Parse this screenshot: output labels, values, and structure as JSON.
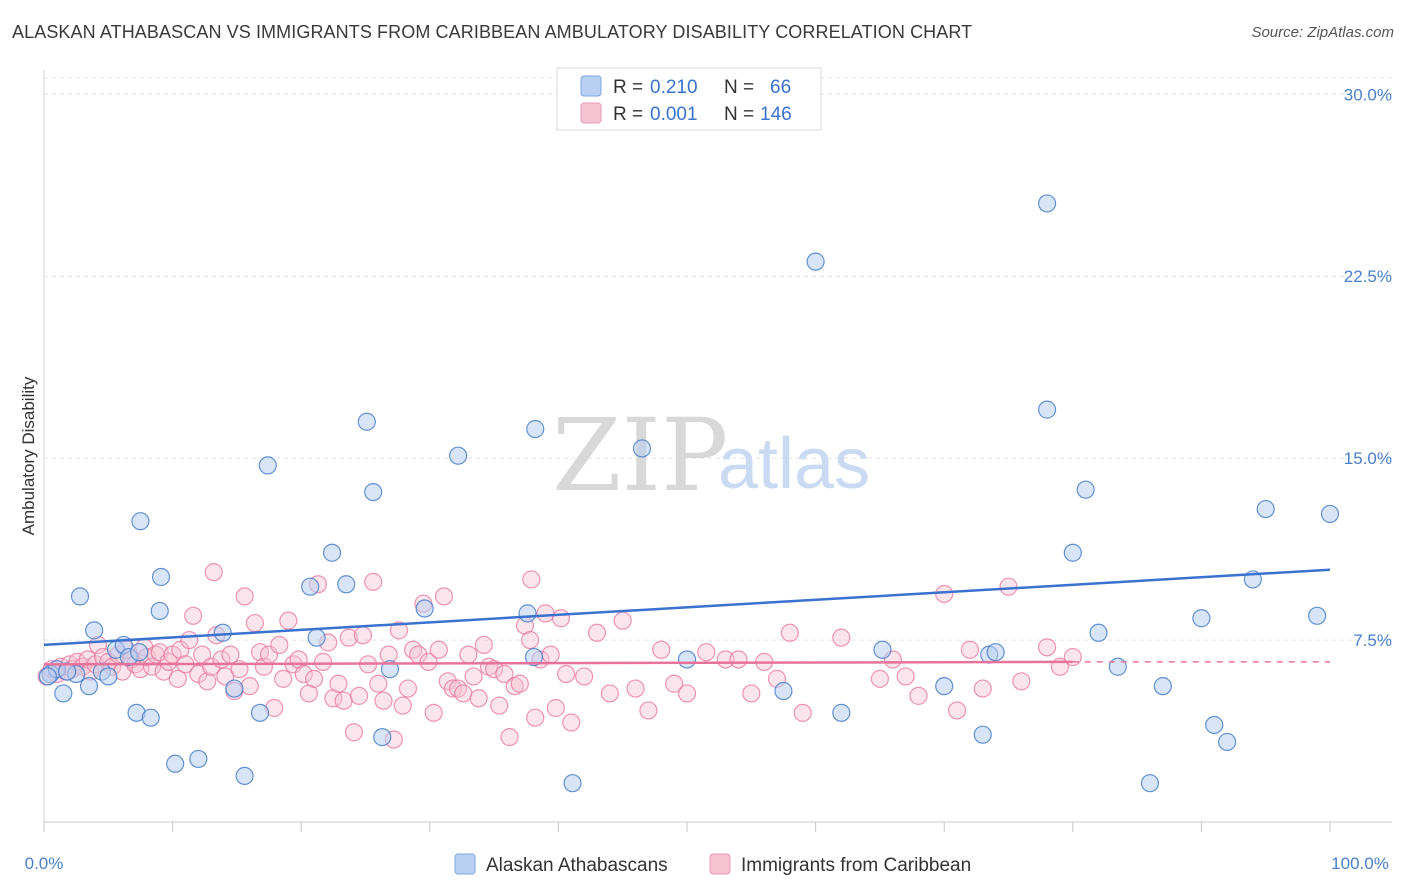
{
  "header": {
    "title": "ALASKAN ATHABASCAN VS IMMIGRANTS FROM CARIBBEAN AMBULATORY DISABILITY CORRELATION CHART",
    "source": "Source: ZipAtlas.com"
  },
  "watermark": {
    "zip": "ZIP",
    "atlas": "atlas"
  },
  "legend": {
    "rows": [
      {
        "r_label": "R =",
        "r_value": "0.210",
        "n_label": "N =",
        "n_value": "66"
      },
      {
        "r_label": "R =",
        "r_value": "0.001",
        "n_label": "N =",
        "n_value": "146"
      }
    ]
  },
  "bottom_legend": [
    "Alaskan Athabascans",
    "Immigrants from Caribbean"
  ],
  "chart_data": {
    "type": "scatter",
    "title": "ALASKAN ATHABASCAN VS IMMIGRANTS FROM CARIBBEAN AMBULATORY DISABILITY CORRELATION CHART",
    "xlabel": "",
    "ylabel": "Ambulatory Disability",
    "xlim": [
      0,
      100
    ],
    "ylim": [
      0,
      31
    ],
    "x_tick_labels": [
      "0.0%",
      "100.0%"
    ],
    "y_ticks": [
      7.5,
      15.0,
      22.5,
      30.0
    ],
    "y_tick_labels": [
      "7.5%",
      "15.0%",
      "22.5%",
      "30.0%"
    ],
    "grid": "horizontal dashed",
    "legend_position": "top-center",
    "colors": {
      "blue": "#4a7fcb",
      "blue_fill": "#b8d0f2",
      "pink": "#e8739a",
      "pink_fill": "#f6c3d3"
    },
    "series": [
      {
        "name": "Alaskan Athabascans",
        "color": "#4a7fcb",
        "trend": {
          "x": [
            0,
            100
          ],
          "y": [
            7.3,
            10.4
          ]
        },
        "points": [
          [
            0.5,
            6.1
          ],
          [
            1.0,
            6.3
          ],
          [
            1.5,
            5.3
          ],
          [
            2.5,
            6.1
          ],
          [
            2.8,
            9.3
          ],
          [
            3.5,
            5.6
          ],
          [
            3.9,
            7.9
          ],
          [
            4.5,
            6.2
          ],
          [
            5.0,
            6.0
          ],
          [
            5.6,
            7.1
          ],
          [
            6.2,
            7.3
          ],
          [
            6.6,
            6.8
          ],
          [
            7.2,
            4.5
          ],
          [
            7.4,
            7.0
          ],
          [
            7.5,
            12.4
          ],
          [
            8.3,
            4.3
          ],
          [
            9.0,
            8.7
          ],
          [
            9.1,
            10.1
          ],
          [
            10.2,
            2.4
          ],
          [
            12.0,
            2.6
          ],
          [
            13.9,
            7.8
          ],
          [
            14.8,
            5.5
          ],
          [
            15.6,
            1.9
          ],
          [
            16.8,
            4.5
          ],
          [
            17.4,
            14.7
          ],
          [
            20.7,
            9.7
          ],
          [
            21.2,
            7.6
          ],
          [
            22.4,
            11.1
          ],
          [
            23.5,
            9.8
          ],
          [
            25.1,
            16.5
          ],
          [
            25.6,
            13.6
          ],
          [
            26.3,
            3.5
          ],
          [
            26.9,
            6.3
          ],
          [
            29.6,
            8.8
          ],
          [
            32.2,
            15.1
          ],
          [
            37.6,
            8.6
          ],
          [
            38.1,
            6.8
          ],
          [
            38.2,
            16.2
          ],
          [
            41.1,
            1.6
          ],
          [
            46.5,
            15.4
          ],
          [
            50.0,
            6.7
          ],
          [
            57.5,
            5.4
          ],
          [
            60.0,
            23.1
          ],
          [
            62.0,
            4.5
          ],
          [
            65.2,
            7.1
          ],
          [
            70.0,
            5.6
          ],
          [
            73.0,
            3.6
          ],
          [
            73.5,
            6.9
          ],
          [
            74.0,
            7.0
          ],
          [
            78.0,
            25.5
          ],
          [
            78.0,
            17.0
          ],
          [
            80.0,
            11.1
          ],
          [
            81.0,
            13.7
          ],
          [
            82.0,
            7.8
          ],
          [
            83.5,
            6.4
          ],
          [
            86.0,
            1.6
          ],
          [
            87.0,
            5.6
          ],
          [
            90.0,
            8.4
          ],
          [
            91.0,
            4.0
          ],
          [
            92.0,
            3.3
          ],
          [
            94.0,
            10.0
          ],
          [
            95.0,
            12.9
          ],
          [
            99.0,
            8.5
          ],
          [
            100.0,
            12.7
          ],
          [
            0.3,
            6.0
          ],
          [
            1.8,
            6.2
          ]
        ]
      },
      {
        "name": "Immigrants from Caribbean",
        "color": "#e8739a",
        "trend": {
          "x": [
            0,
            80
          ],
          "y": [
            6.5,
            6.6
          ]
        },
        "trend_dashed": {
          "x": [
            80,
            100
          ],
          "y": [
            6.6,
            6.6
          ]
        },
        "points": [
          [
            0.2,
            6.0
          ],
          [
            0.6,
            6.3
          ],
          [
            1.0,
            6.1
          ],
          [
            1.3,
            6.4
          ],
          [
            1.7,
            6.2
          ],
          [
            2.0,
            6.5
          ],
          [
            2.2,
            6.3
          ],
          [
            2.6,
            6.6
          ],
          [
            3.0,
            6.4
          ],
          [
            3.4,
            6.7
          ],
          [
            3.6,
            6.2
          ],
          [
            4.0,
            6.5
          ],
          [
            4.2,
            7.3
          ],
          [
            4.6,
            6.8
          ],
          [
            5.0,
            6.6
          ],
          [
            5.3,
            6.4
          ],
          [
            5.8,
            6.9
          ],
          [
            6.1,
            6.2
          ],
          [
            6.4,
            7.1
          ],
          [
            6.8,
            6.7
          ],
          [
            7.1,
            6.5
          ],
          [
            7.5,
            6.3
          ],
          [
            7.8,
            7.2
          ],
          [
            8.0,
            6.8
          ],
          [
            8.4,
            6.4
          ],
          [
            8.7,
            6.9
          ],
          [
            9.0,
            7.0
          ],
          [
            9.3,
            6.2
          ],
          [
            9.7,
            6.6
          ],
          [
            10.0,
            6.9
          ],
          [
            10.4,
            5.9
          ],
          [
            10.6,
            7.1
          ],
          [
            11.0,
            6.5
          ],
          [
            11.3,
            7.5
          ],
          [
            11.6,
            8.5
          ],
          [
            12.0,
            6.1
          ],
          [
            12.3,
            6.9
          ],
          [
            12.7,
            5.8
          ],
          [
            13.0,
            6.4
          ],
          [
            13.4,
            7.7
          ],
          [
            13.8,
            6.7
          ],
          [
            14.1,
            6.0
          ],
          [
            14.5,
            6.9
          ],
          [
            14.8,
            5.4
          ],
          [
            15.2,
            6.3
          ],
          [
            15.6,
            9.3
          ],
          [
            16.0,
            5.6
          ],
          [
            16.4,
            8.2
          ],
          [
            16.8,
            7.0
          ],
          [
            17.1,
            6.4
          ],
          [
            17.5,
            6.9
          ],
          [
            17.9,
            4.7
          ],
          [
            18.3,
            7.3
          ],
          [
            18.6,
            5.9
          ],
          [
            19.0,
            8.3
          ],
          [
            19.4,
            6.5
          ],
          [
            19.8,
            6.7
          ],
          [
            20.2,
            6.1
          ],
          [
            20.6,
            5.3
          ],
          [
            21.0,
            5.9
          ],
          [
            21.3,
            9.8
          ],
          [
            21.7,
            6.6
          ],
          [
            22.1,
            7.4
          ],
          [
            22.5,
            5.1
          ],
          [
            22.9,
            5.7
          ],
          [
            23.3,
            5.0
          ],
          [
            23.7,
            7.6
          ],
          [
            24.1,
            3.7
          ],
          [
            24.5,
            5.2
          ],
          [
            24.8,
            7.7
          ],
          [
            25.2,
            6.5
          ],
          [
            25.6,
            9.9
          ],
          [
            26.0,
            5.7
          ],
          [
            26.4,
            5.0
          ],
          [
            26.8,
            6.9
          ],
          [
            27.2,
            3.4
          ],
          [
            27.6,
            7.9
          ],
          [
            27.9,
            4.8
          ],
          [
            28.3,
            5.5
          ],
          [
            28.7,
            7.1
          ],
          [
            29.1,
            6.9
          ],
          [
            29.5,
            9.0
          ],
          [
            29.9,
            6.6
          ],
          [
            30.3,
            4.5
          ],
          [
            30.7,
            7.1
          ],
          [
            31.1,
            9.3
          ],
          [
            31.4,
            5.8
          ],
          [
            31.8,
            5.5
          ],
          [
            32.2,
            5.5
          ],
          [
            32.6,
            5.3
          ],
          [
            33.0,
            6.9
          ],
          [
            33.4,
            6.0
          ],
          [
            33.8,
            5.1
          ],
          [
            34.2,
            7.3
          ],
          [
            34.6,
            6.4
          ],
          [
            35.0,
            6.3
          ],
          [
            35.4,
            4.8
          ],
          [
            35.8,
            6.1
          ],
          [
            36.2,
            3.5
          ],
          [
            36.6,
            5.6
          ],
          [
            37.0,
            5.7
          ],
          [
            37.4,
            8.1
          ],
          [
            37.8,
            7.5
          ],
          [
            38.2,
            4.3
          ],
          [
            38.6,
            6.7
          ],
          [
            39.0,
            8.6
          ],
          [
            39.4,
            6.9
          ],
          [
            39.8,
            4.7
          ],
          [
            40.2,
            8.4
          ],
          [
            40.6,
            6.1
          ],
          [
            41.0,
            4.1
          ],
          [
            42.0,
            6.0
          ],
          [
            43.0,
            7.8
          ],
          [
            44.0,
            5.3
          ],
          [
            45.0,
            8.3
          ],
          [
            46.0,
            5.5
          ],
          [
            47.0,
            4.6
          ],
          [
            48.0,
            7.1
          ],
          [
            49.0,
            5.7
          ],
          [
            50.0,
            5.3
          ],
          [
            51.5,
            7.0
          ],
          [
            53.0,
            6.7
          ],
          [
            54.0,
            6.7
          ],
          [
            55.0,
            5.3
          ],
          [
            56.0,
            6.6
          ],
          [
            57.0,
            5.9
          ],
          [
            58.0,
            7.8
          ],
          [
            59.0,
            4.5
          ],
          [
            62.0,
            7.6
          ],
          [
            65.0,
            5.9
          ],
          [
            66.0,
            6.7
          ],
          [
            67.0,
            6.0
          ],
          [
            68.0,
            5.2
          ],
          [
            70.0,
            9.4
          ],
          [
            71.0,
            4.6
          ],
          [
            72.0,
            7.1
          ],
          [
            73.0,
            5.5
          ],
          [
            75.0,
            9.7
          ],
          [
            76.0,
            5.8
          ],
          [
            78.0,
            7.2
          ],
          [
            79.0,
            6.4
          ],
          [
            80.0,
            6.8
          ],
          [
            13.2,
            10.3
          ],
          [
            37.9,
            10.0
          ]
        ]
      }
    ]
  }
}
